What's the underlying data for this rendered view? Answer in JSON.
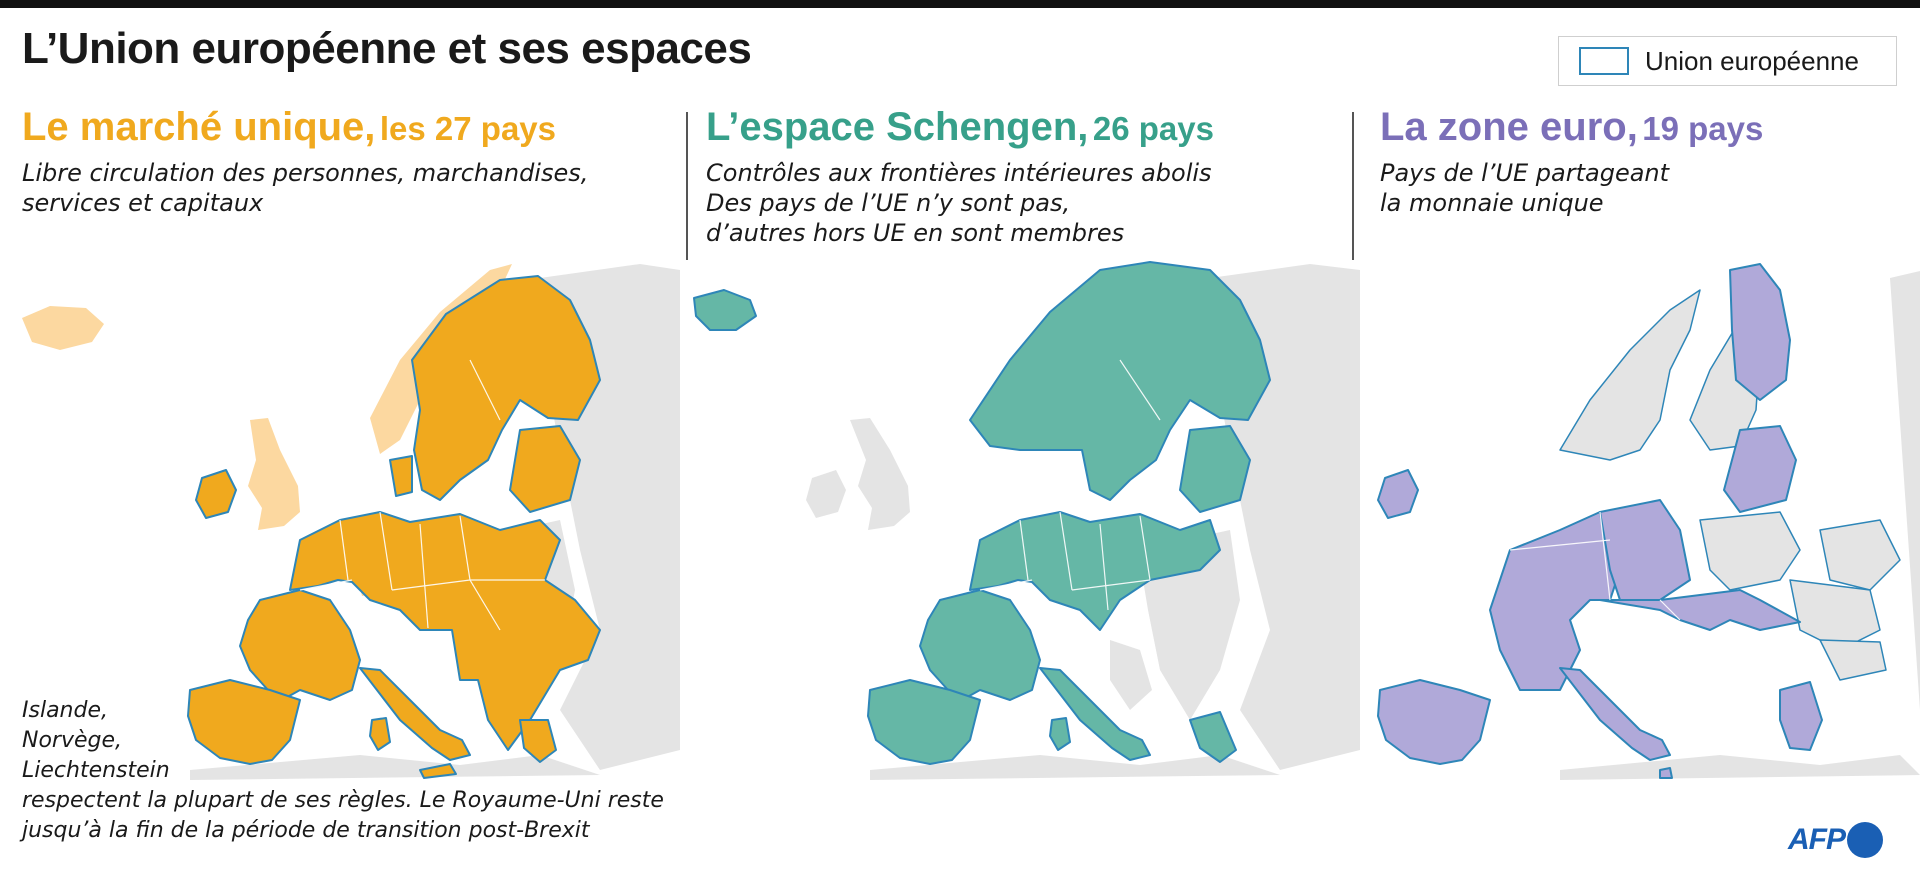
{
  "title": "L’Union européenne et ses espaces",
  "legend": {
    "label": "Union européenne",
    "border_color": "#2e86b8"
  },
  "colors": {
    "marche_unique": "#f0a91e",
    "marche_unique_associated": "#fcd8a0",
    "schengen": "#65b7a6",
    "euro": "#b0a9d9",
    "non_member": "#e4e4e4",
    "sea": "#ffffff"
  },
  "columns": [
    {
      "title": "Le marché unique,",
      "count": "les 27 pays",
      "color": "#f0a91e",
      "desc": [
        "Libre circulation des personnes, marchandises,",
        "services et capitaux"
      ]
    },
    {
      "title": "L’espace Schengen,",
      "count": "26 pays",
      "color": "#37a08a",
      "desc": [
        "Contrôles aux frontières intérieures abolis",
        "Des pays de l’UE n’y sont pas,",
        "d’autres hors UE en sont membres"
      ]
    },
    {
      "title": "La zone euro,",
      "count": "19 pays",
      "color": "#7b6fb8",
      "desc": [
        "Pays de l’UE partageant",
        "la monnaie unique"
      ]
    }
  ],
  "note": [
    "Islande,",
    "Norvège,",
    "Liechtenstein",
    "respectent la plupart de ses règles. Le Royaume-Uni reste",
    "jusqu’à la fin de la période de transition post-Brexit"
  ],
  "credit": "AFP"
}
